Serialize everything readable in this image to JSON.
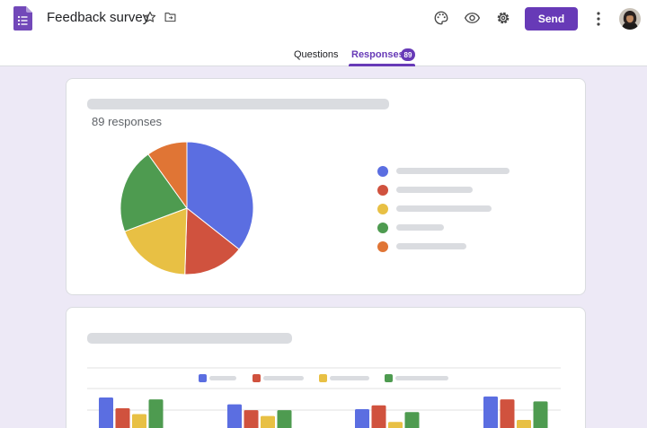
{
  "header": {
    "title": "Feedback survey",
    "send_label": "Send",
    "icons": [
      "forms-app-icon",
      "star-icon",
      "folder-move-icon",
      "palette-icon",
      "eye-preview-icon",
      "gear-icon",
      "more-vert-icon"
    ]
  },
  "tabs": [
    {
      "label": "Questions",
      "active": false
    },
    {
      "label": "Responses",
      "active": true,
      "badge": "89"
    }
  ],
  "summary": {
    "responses_text": "89 responses"
  },
  "colors": {
    "accent": "#673ab7",
    "blue": "#5b6ee1",
    "red": "#d0523e",
    "yellow": "#e8c044",
    "green": "#4e9b50",
    "orange": "#e07535"
  },
  "chart_data": [
    {
      "type": "pie",
      "values": [
        36,
        15,
        19,
        21,
        10
      ],
      "colors": [
        "#5b6ee1",
        "#d0523e",
        "#e8c044",
        "#4e9b50",
        "#e07535"
      ],
      "labels": [
        "",
        "",
        "",
        "",
        ""
      ],
      "legend": "right"
    },
    {
      "type": "bar",
      "categories": [
        "",
        "",
        "",
        ""
      ],
      "series": [
        {
          "color": "#5b6ee1",
          "values": [
            34,
            27,
            22,
            35
          ]
        },
        {
          "color": "#d0523e",
          "values": [
            23,
            21,
            26,
            32
          ]
        },
        {
          "color": "#e8c044",
          "values": [
            17,
            15,
            9,
            11
          ]
        },
        {
          "color": "#4e9b50",
          "values": [
            32,
            21,
            19,
            30
          ]
        }
      ],
      "ylim": [
        0,
        45
      ],
      "grid": true,
      "legend": "top"
    }
  ]
}
